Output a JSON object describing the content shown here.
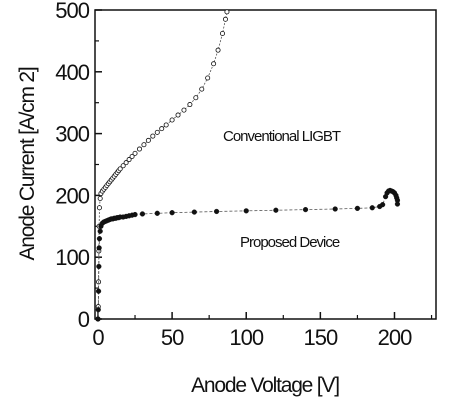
{
  "chart_data": {
    "type": "scatter",
    "title": "",
    "xlabel": "Anode Voltage [V]",
    "ylabel": "Anode Current [A/cm 2]",
    "xlim": [
      -2,
      228
    ],
    "ylim": [
      0,
      500
    ],
    "x_ticks": [
      0,
      50,
      100,
      150,
      200
    ],
    "y_ticks": [
      0,
      100,
      200,
      300,
      400,
      500
    ],
    "annotations": [
      "Conventional LIGBT",
      "Proposed Device"
    ],
    "colors": {
      "axis": "#111111",
      "marker": "#111111",
      "line": "#555555"
    },
    "series": [
      {
        "name": "Conventional LIGBT",
        "marker": "open-circle",
        "points": [
          [
            0,
            0
          ],
          [
            0.2,
            20
          ],
          [
            0.4,
            60
          ],
          [
            0.6,
            110
          ],
          [
            0.8,
            150
          ],
          [
            1,
            180
          ],
          [
            1.5,
            195
          ],
          [
            2,
            203
          ],
          [
            3,
            207
          ],
          [
            4,
            210
          ],
          [
            5,
            213
          ],
          [
            6,
            216
          ],
          [
            7,
            219
          ],
          [
            8,
            222
          ],
          [
            9,
            225
          ],
          [
            10,
            228
          ],
          [
            11,
            231
          ],
          [
            12,
            234
          ],
          [
            13,
            237
          ],
          [
            14,
            240
          ],
          [
            15,
            243
          ],
          [
            17,
            248
          ],
          [
            19,
            253
          ],
          [
            21,
            258
          ],
          [
            23,
            263
          ],
          [
            25,
            268
          ],
          [
            28,
            275
          ],
          [
            31,
            282
          ],
          [
            34,
            289
          ],
          [
            37,
            296
          ],
          [
            40,
            302
          ],
          [
            43,
            308
          ],
          [
            46,
            314
          ],
          [
            50,
            322
          ],
          [
            54,
            330
          ],
          [
            58,
            338
          ],
          [
            62,
            347
          ],
          [
            66,
            358
          ],
          [
            70,
            372
          ],
          [
            74,
            390
          ],
          [
            78,
            413
          ],
          [
            81,
            435
          ],
          [
            84,
            462
          ],
          [
            86,
            485
          ],
          [
            87,
            497
          ]
        ]
      },
      {
        "name": "Proposed Device",
        "marker": "filled-circle",
        "points": [
          [
            0,
            0
          ],
          [
            0.2,
            15
          ],
          [
            0.4,
            45
          ],
          [
            0.6,
            85
          ],
          [
            0.8,
            115
          ],
          [
            1,
            130
          ],
          [
            1.5,
            142
          ],
          [
            2,
            150
          ],
          [
            3,
            155
          ],
          [
            4,
            157
          ],
          [
            5,
            158
          ],
          [
            6,
            159
          ],
          [
            7,
            160
          ],
          [
            8,
            161
          ],
          [
            9,
            162
          ],
          [
            10,
            162
          ],
          [
            11,
            163
          ],
          [
            12,
            163
          ],
          [
            13,
            164
          ],
          [
            14,
            164
          ],
          [
            15,
            165
          ],
          [
            17,
            165
          ],
          [
            19,
            166
          ],
          [
            21,
            167
          ],
          [
            23,
            168
          ],
          [
            25,
            169
          ],
          [
            30,
            170
          ],
          [
            40,
            171
          ],
          [
            50,
            172
          ],
          [
            65,
            173
          ],
          [
            80,
            174
          ],
          [
            100,
            175
          ],
          [
            120,
            176
          ],
          [
            140,
            177
          ],
          [
            160,
            178
          ],
          [
            175,
            179
          ],
          [
            185,
            180
          ],
          [
            190,
            182
          ],
          [
            192,
            185
          ],
          [
            194,
            198
          ],
          [
            195,
            204
          ],
          [
            196,
            207
          ],
          [
            197,
            208
          ],
          [
            198,
            207
          ],
          [
            199,
            206
          ],
          [
            200,
            204
          ],
          [
            201,
            200
          ],
          [
            201.5,
            196
          ],
          [
            202,
            192
          ],
          [
            202,
            186
          ]
        ]
      }
    ]
  }
}
